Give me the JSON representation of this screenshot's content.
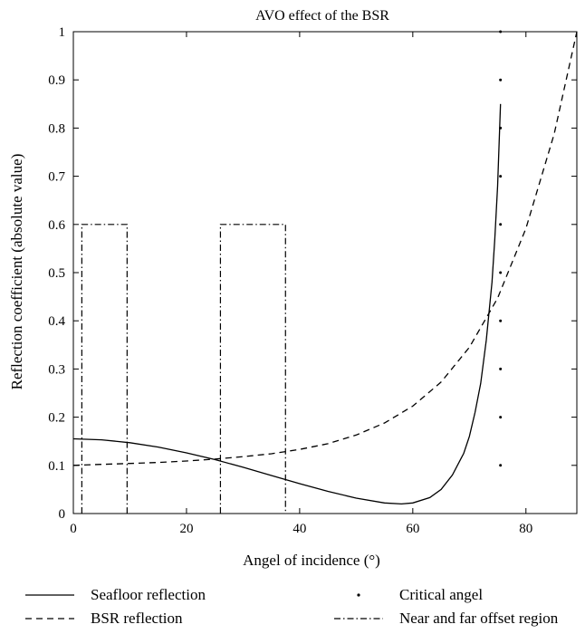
{
  "chart_data": {
    "type": "line",
    "title": "AVO effect of the BSR",
    "xlabel": "Angel of incidence (°)",
    "ylabel": "Reflection coefficient (absolute value)",
    "xlim": [
      0,
      89
    ],
    "ylim": [
      0,
      1
    ],
    "x_ticks": [
      0,
      20,
      40,
      60,
      80
    ],
    "y_ticks": [
      0,
      0.1,
      0.2,
      0.3,
      0.4,
      0.5,
      0.6,
      0.7,
      0.8,
      0.9,
      1
    ],
    "x_tick_labels": [
      "0",
      "20",
      "40",
      "60",
      "80"
    ],
    "y_tick_labels": [
      "0",
      "0.1",
      "0.2",
      "0.3",
      "0.4",
      "0.5",
      "0.6",
      "0.7",
      "0.8",
      "0.9",
      "1"
    ],
    "legend_position": "bottom",
    "series": [
      {
        "name": "Seafloor reflection",
        "style": "solid",
        "x": [
          0,
          5,
          10,
          15,
          20,
          25,
          30,
          35,
          40,
          45,
          50,
          55,
          58,
          60,
          63,
          65,
          67,
          69,
          70,
          71,
          72,
          73,
          74,
          74.5,
          75,
          75.5
        ],
        "y": [
          0.155,
          0.153,
          0.147,
          0.138,
          0.126,
          0.112,
          0.096,
          0.079,
          0.062,
          0.046,
          0.032,
          0.022,
          0.02,
          0.022,
          0.033,
          0.05,
          0.08,
          0.125,
          0.16,
          0.21,
          0.27,
          0.36,
          0.48,
          0.57,
          0.68,
          0.85
        ]
      },
      {
        "name": "BSR reflection",
        "style": "dashed",
        "x": [
          0,
          5,
          10,
          15,
          20,
          25,
          30,
          35,
          40,
          45,
          50,
          55,
          60,
          65,
          70,
          75,
          80,
          85,
          89
        ],
        "y": [
          0.1,
          0.102,
          0.104,
          0.106,
          0.109,
          0.113,
          0.118,
          0.124,
          0.133,
          0.145,
          0.163,
          0.188,
          0.223,
          0.273,
          0.345,
          0.447,
          0.592,
          0.788,
          1.0
        ]
      },
      {
        "name": "Critical angel",
        "style": "dotted-markers",
        "x": [
          75.5,
          75.5,
          75.5,
          75.5,
          75.5,
          75.5,
          75.5,
          75.5,
          75.5,
          75.5
        ],
        "y": [
          0.1,
          0.2,
          0.3,
          0.4,
          0.5,
          0.6,
          0.7,
          0.8,
          0.9,
          1.0
        ]
      },
      {
        "name": "Near and far offset region",
        "style": "dashdot",
        "regions": [
          {
            "x0": 1.5,
            "x1": 9.5,
            "y0": 0,
            "y1": 0.6
          },
          {
            "x0": 26,
            "x1": 37.5,
            "y0": 0,
            "y1": 0.6
          }
        ]
      }
    ]
  },
  "legend": {
    "items": [
      {
        "label": "Seafloor reflection",
        "style": "solid"
      },
      {
        "label": "Critical angel",
        "style": "dotted-markers"
      },
      {
        "label": "BSR reflection",
        "style": "dashed"
      },
      {
        "label": "Near and far offset region",
        "style": "dashdot"
      }
    ]
  }
}
